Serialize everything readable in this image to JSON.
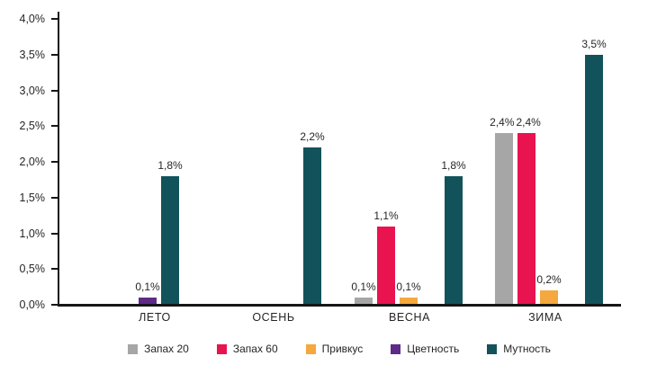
{
  "chart_data": {
    "type": "bar",
    "title": "",
    "xlabel": "",
    "ylabel": "",
    "categories": [
      "ЛЕТО",
      "ОСЕНЬ",
      "ВЕСНА",
      "ЗИМА"
    ],
    "series": [
      {
        "name": "Запах 20",
        "color": "#A6A6A6",
        "values": [
          0,
          0,
          0.1,
          2.4
        ],
        "labels": [
          null,
          null,
          "0,1%",
          "2,4%"
        ]
      },
      {
        "name": "Запах 60",
        "color": "#E8134F",
        "values": [
          0,
          0,
          1.1,
          2.4
        ],
        "labels": [
          null,
          null,
          "1,1%",
          "2,4%"
        ]
      },
      {
        "name": "Привкус",
        "color": "#F5A83D",
        "values": [
          0,
          0,
          0.1,
          0.2
        ],
        "labels": [
          null,
          null,
          "0,1%",
          "0,2%"
        ]
      },
      {
        "name": "Цветность",
        "color": "#5E2B88",
        "values": [
          0.1,
          0,
          0,
          0
        ],
        "labels": [
          "0,1%",
          null,
          null,
          null
        ]
      },
      {
        "name": "Мутность",
        "color": "#12535B",
        "values": [
          1.8,
          2.2,
          1.8,
          3.5
        ],
        "labels": [
          "1,8%",
          "2,2%",
          "1,8%",
          "3,5%"
        ]
      }
    ],
    "ylim": [
      0,
      4
    ],
    "ytick_step": 0.5,
    "ytick_labels": [
      "0,0%",
      "0,5%",
      "1,0%",
      "1,5%",
      "2,0%",
      "2,5%",
      "3,0%",
      "3,5%",
      "4,0%"
    ],
    "value_label_format": "comma-decimal-percent",
    "grid": false,
    "legend_position": "bottom"
  }
}
